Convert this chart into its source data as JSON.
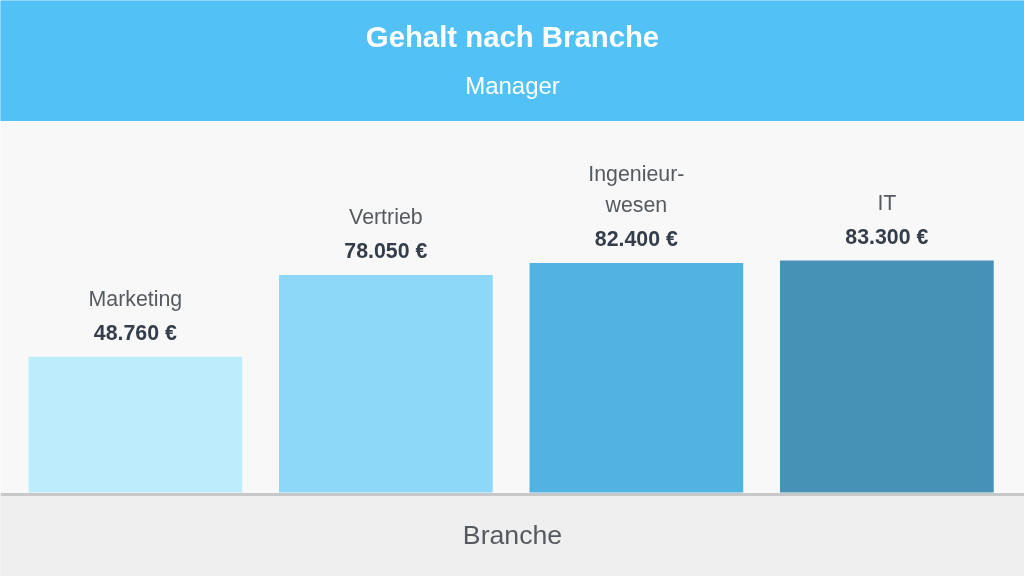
{
  "chart_data": {
    "type": "bar",
    "title": "Gehalt nach Branche",
    "subtitle": "Manager",
    "xlabel": "Branche",
    "categories": [
      "Marketing",
      "Vertrieb",
      "Ingenieur-\nwesen",
      "IT"
    ],
    "values": [
      48760,
      78050,
      82400,
      83300
    ],
    "colors": [
      "#bdedfc",
      "#8dd7f8",
      "#50b3e2",
      "#4692b6"
    ],
    "value_labels": [
      "48.760 €",
      "78.050 €",
      "82.400 €",
      "83.300 €"
    ],
    "grid": false
  }
}
